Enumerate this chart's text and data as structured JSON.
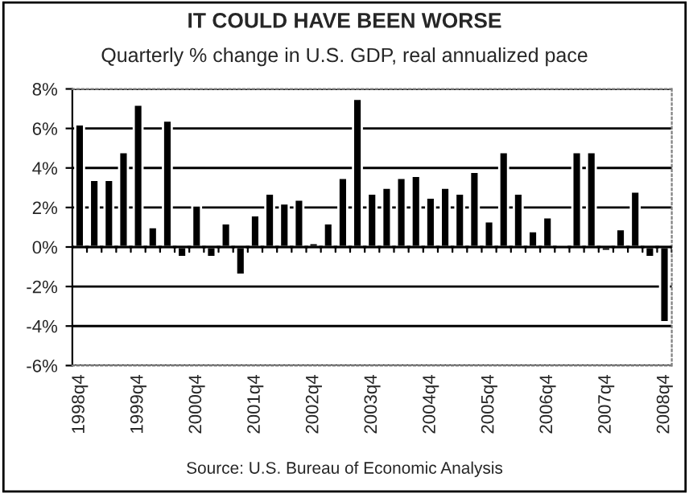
{
  "chart_data": {
    "type": "bar",
    "title": "IT COULD HAVE BEEN WORSE",
    "subtitle": "Quarterly % change in U.S. GDP, real annualized pace",
    "categories": [
      "1998q4",
      null,
      null,
      null,
      "1999q4",
      null,
      null,
      null,
      "2000q4",
      null,
      null,
      null,
      "2001q4",
      null,
      null,
      null,
      "2002q4",
      null,
      null,
      null,
      "2003q4",
      null,
      null,
      null,
      "2004q4",
      null,
      null,
      null,
      "2005q4",
      null,
      null,
      null,
      "2006q4",
      null,
      null,
      null,
      "2007q4",
      null,
      null,
      null,
      "2008q4"
    ],
    "values": [
      6.2,
      3.4,
      3.4,
      4.8,
      7.2,
      1.0,
      6.4,
      -0.5,
      2.1,
      -0.5,
      1.2,
      -1.4,
      1.6,
      2.7,
      2.2,
      2.4,
      0.2,
      1.2,
      3.5,
      7.5,
      2.7,
      3.0,
      3.5,
      3.6,
      2.5,
      3.0,
      2.7,
      3.8,
      1.3,
      4.8,
      2.7,
      0.8,
      1.5,
      0.1,
      4.8,
      4.8,
      -0.2,
      0.9,
      2.8,
      -0.5,
      -3.8
    ],
    "color": "#000000",
    "ylim": [
      -6,
      8
    ],
    "yticks": [
      {
        "value": -6,
        "label": "-6%"
      },
      {
        "value": -4,
        "label": "-4%"
      },
      {
        "value": -2,
        "label": "-2%"
      },
      {
        "value": 0,
        "label": "0%"
      },
      {
        "value": 2,
        "label": "2%"
      },
      {
        "value": 4,
        "label": "4%"
      },
      {
        "value": 6,
        "label": "6%"
      },
      {
        "value": 8,
        "label": "8%"
      }
    ],
    "grid": "y",
    "annotations": [
      "Source: U.S. Bureau of Economic Analysis"
    ]
  }
}
